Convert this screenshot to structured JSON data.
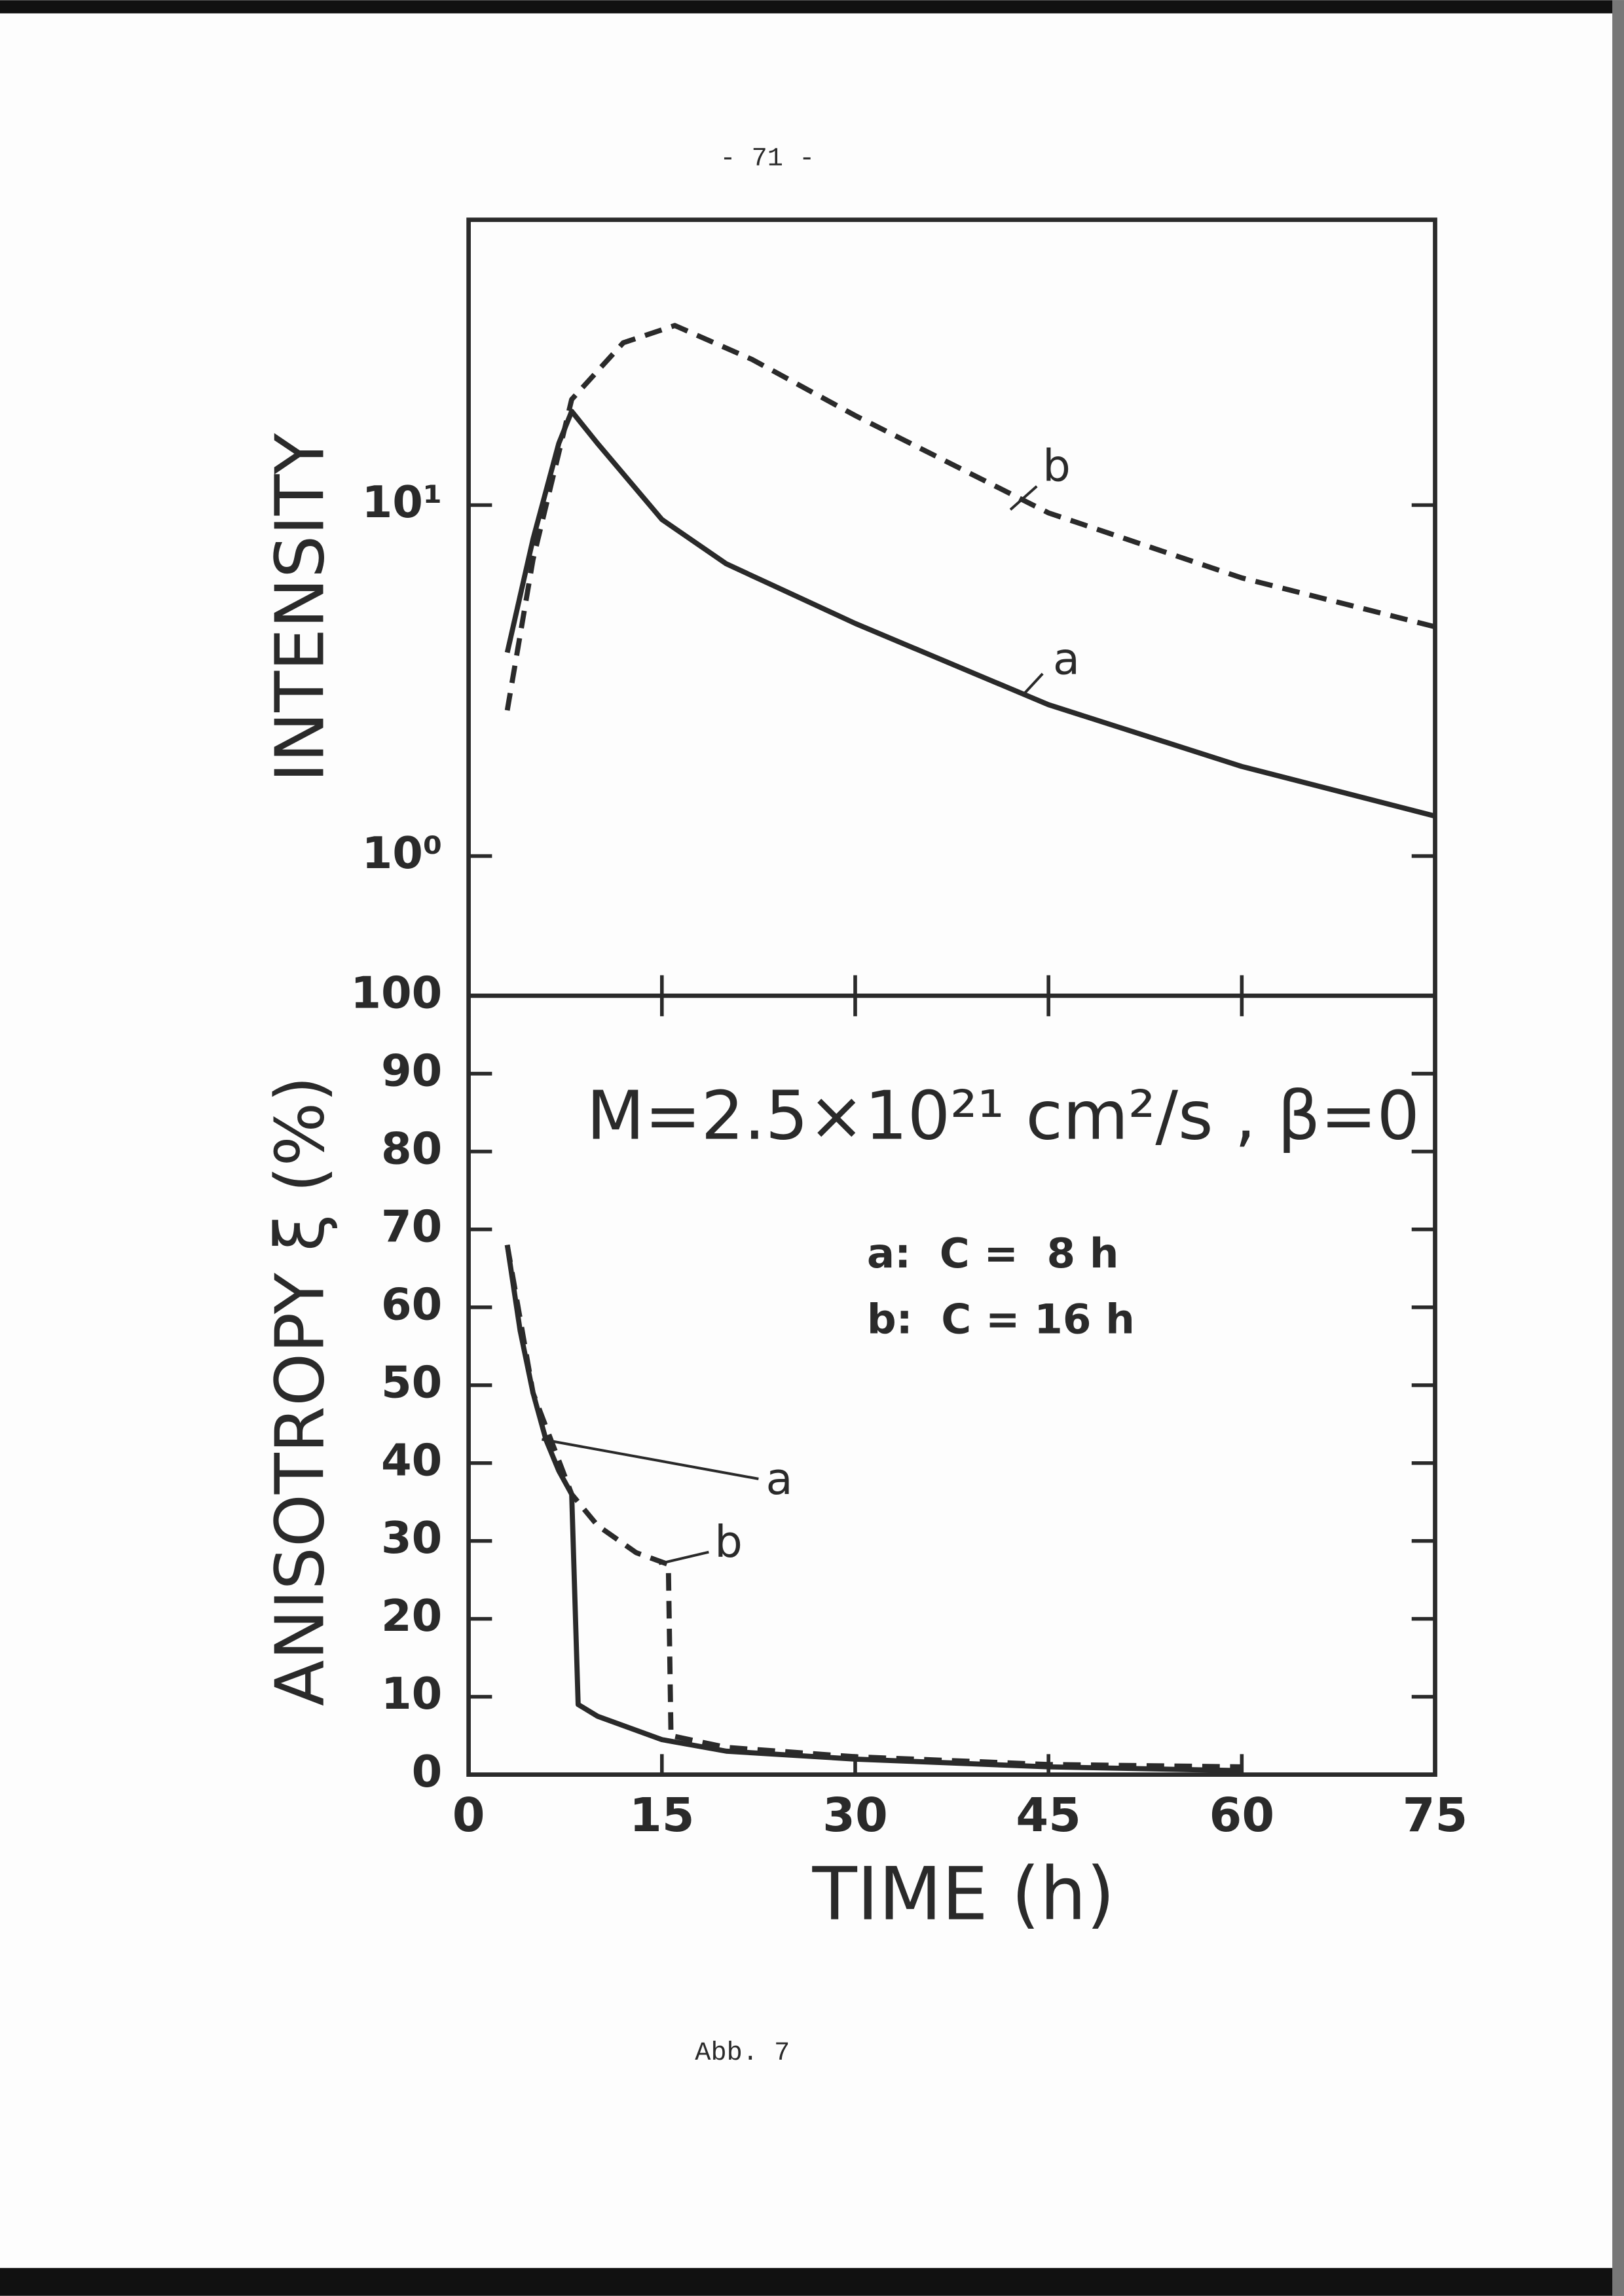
{
  "page": {
    "number": "- 71 -",
    "caption": "Abb. 7"
  },
  "chart_data": [
    {
      "type": "line",
      "ylabel": "INTENSITY",
      "yscale": "log",
      "xlim": [
        0,
        75
      ],
      "ylim": [
        0.4,
        65
      ],
      "yticks": [
        {
          "value": 1,
          "label": "10⁰"
        },
        {
          "value": 10,
          "label": "10¹"
        }
      ],
      "series": [
        {
          "name": "a",
          "color": "#2a2a2a",
          "style": "solid",
          "x": [
            3,
            5,
            7,
            8,
            10,
            15,
            20,
            30,
            45,
            60,
            75
          ],
          "values": [
            3.8,
            8,
            15,
            18.5,
            15,
            9.1,
            6.8,
            4.6,
            2.7,
            1.8,
            1.3
          ]
        },
        {
          "name": "b",
          "color": "#2a2a2a",
          "style": "dashed",
          "x": [
            3,
            5,
            8,
            12,
            16,
            22,
            30,
            45,
            60,
            75
          ],
          "values": [
            2.6,
            7,
            20,
            29,
            32.5,
            26,
            18,
            9.5,
            6.2,
            4.5
          ]
        }
      ]
    },
    {
      "type": "line",
      "xlabel": "TIME (h)",
      "ylabel": "ANISOTROPY ξ (%)",
      "xlim": [
        0,
        75
      ],
      "ylim": [
        0,
        100
      ],
      "xticks": [
        0,
        15,
        30,
        45,
        60,
        75
      ],
      "yticks": [
        0,
        10,
        20,
        30,
        40,
        50,
        60,
        70,
        80,
        90,
        100
      ],
      "annotations": [
        "M=2.5×10²¹ cm²/s , β=0",
        "a:  C =  8 h",
        "b:  C = 16 h"
      ],
      "series": [
        {
          "name": "a",
          "color": "#2a2a2a",
          "style": "solid",
          "x": [
            3,
            4,
            5,
            6,
            7,
            8,
            8.5,
            10,
            15,
            20,
            30,
            45,
            60
          ],
          "values": [
            68,
            57,
            49,
            43,
            39,
            36,
            9,
            7.5,
            4.5,
            3,
            2,
            1,
            0.5
          ]
        },
        {
          "name": "b",
          "color": "#2a2a2a",
          "style": "dashed",
          "x": [
            3,
            5,
            8,
            10,
            13,
            15.5,
            15.7,
            20,
            30,
            45,
            60
          ],
          "values": [
            68,
            49,
            36,
            32,
            28.5,
            27,
            5,
            3.5,
            2.3,
            1.3,
            1
          ]
        }
      ]
    }
  ]
}
